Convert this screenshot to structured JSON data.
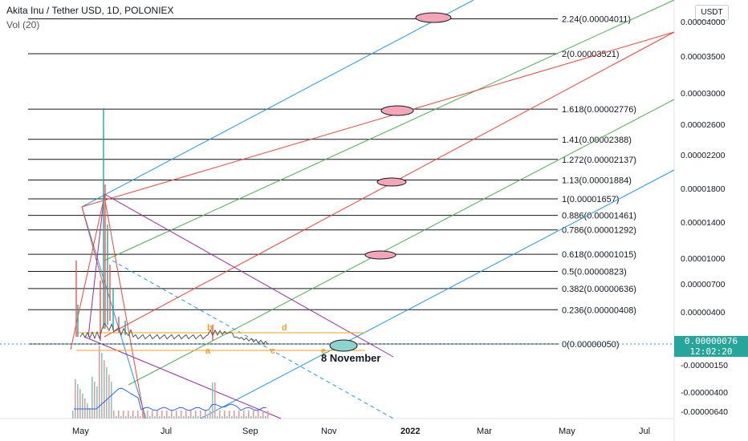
{
  "header": {
    "title": "Akita Inu / Tether USD, 1D, POLONIEX",
    "volume_label": "Vol (20)",
    "currency_button": "USDT"
  },
  "current_price": {
    "value": "0.00000076",
    "countdown": "12:02:20",
    "color": "#26a69a"
  },
  "annotations": {
    "date_note": "8 November",
    "wave_labels": [
      "a",
      "b",
      "c",
      "d",
      "e"
    ]
  },
  "colors": {
    "fib_line": "#131722",
    "fib_ellipse_fill": "#f4a6b8",
    "channel_blue": "#2196f3",
    "channel_green": "#4caf50",
    "channel_red": "#f44336",
    "purple": "#9c27b0",
    "orange": "#f7a21b",
    "ellipse_teal": "#26a69a"
  },
  "chart_data": {
    "type": "line",
    "title": "Akita Inu / Tether USD, 1D, POLONIEX",
    "y_axis_ticks": [
      "0.00004000",
      "0.00003500",
      "0.00003000",
      "0.00002600",
      "0.00002200",
      "0.00001800",
      "0.00001400",
      "0.00001000",
      "0.00000700",
      "0.00000400",
      "-0.00000150",
      "-0.00000400",
      "-0.00000640"
    ],
    "x_axis_ticks": [
      "May",
      "Jul",
      "Sep",
      "Nov",
      "2022",
      "Mar",
      "May",
      "Jul"
    ],
    "fib_levels": [
      {
        "label": "2.24(0.00004011)",
        "ratio": 2.24,
        "price": 4.011e-05
      },
      {
        "label": "2(0.00003521)",
        "ratio": 2,
        "price": 3.521e-05
      },
      {
        "label": "1.618(0.00002776)",
        "ratio": 1.618,
        "price": 2.776e-05
      },
      {
        "label": "1.41(0.00002388)",
        "ratio": 1.41,
        "price": 2.388e-05
      },
      {
        "label": "1.272(0.00002137)",
        "ratio": 1.272,
        "price": 2.137e-05
      },
      {
        "label": "1.13(0.00001884)",
        "ratio": 1.13,
        "price": 1.884e-05
      },
      {
        "label": "1(0.00001657)",
        "ratio": 1,
        "price": 1.657e-05
      },
      {
        "label": "0.886(0.00001461)",
        "ratio": 0.886,
        "price": 1.461e-05
      },
      {
        "label": "0.786(0.00001292)",
        "ratio": 0.786,
        "price": 1.292e-05
      },
      {
        "label": "0.618(0.00001015)",
        "ratio": 0.618,
        "price": 1.015e-05
      },
      {
        "label": "0.5(0.00000823)",
        "ratio": 0.5,
        "price": 8.23e-06
      },
      {
        "label": "0.382(0.00000636)",
        "ratio": 0.382,
        "price": 6.36e-06
      },
      {
        "label": "0.236(0.00000408)",
        "ratio": 0.236,
        "price": 4.08e-06
      },
      {
        "label": "0(0.00000050)",
        "ratio": 0,
        "price": 5e-07
      }
    ],
    "fib_targets_highlighted": [
      2.24,
      1.618,
      1.13,
      0.618
    ],
    "grid": false
  }
}
